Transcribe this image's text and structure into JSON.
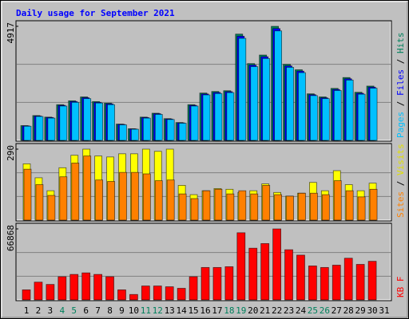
{
  "chart_data": [
    {
      "type": "bar",
      "title": "Daily usage for September 2021",
      "categories": [
        "1",
        "2",
        "3",
        "4",
        "5",
        "6",
        "7",
        "8",
        "9",
        "10",
        "11",
        "12",
        "13",
        "14",
        "15",
        "16",
        "17",
        "18",
        "19",
        "20",
        "21",
        "22",
        "23",
        "24",
        "25",
        "26",
        "27",
        "28",
        "29",
        "30",
        "31"
      ],
      "category_colors": [
        "#000000",
        "#000000",
        "#000000",
        "#00805c",
        "#00805c",
        "#000000",
        "#000000",
        "#000000",
        "#000000",
        "#000000",
        "#00805c",
        "#00805c",
        "#000000",
        "#000000",
        "#000000",
        "#000000",
        "#000000",
        "#00805c",
        "#00805c",
        "#000000",
        "#000000",
        "#000000",
        "#000000",
        "#000000",
        "#00805c",
        "#00805c",
        "#000000",
        "#000000",
        "#000000",
        "#000000",
        "#000000"
      ],
      "legend_separator": " / ",
      "ylim": [
        0,
        4917
      ],
      "yticks": [
        4917
      ],
      "series": [
        {
          "name": "Pages",
          "color": "#00c0ff",
          "values": [
            610,
            1030,
            960,
            1480,
            1640,
            1800,
            1610,
            1540,
            670,
            480,
            960,
            1120,
            900,
            740,
            1480,
            1960,
            2020,
            2060,
            4400,
            3180,
            3530,
            4720,
            3150,
            2920,
            1930,
            1800,
            2150,
            2600,
            1990,
            2250,
            null
          ]
        },
        {
          "name": "Files",
          "color": "#0000ff",
          "values": [
            625,
            1050,
            985,
            1510,
            1675,
            1840,
            1640,
            1575,
            690,
            490,
            985,
            1150,
            920,
            755,
            1510,
            2000,
            2065,
            2100,
            4490,
            3245,
            3605,
            4820,
            3210,
            2985,
            1970,
            1835,
            2195,
            2655,
            2030,
            2295,
            null
          ]
        },
        {
          "name": "Hits",
          "color": "#00805c",
          "values": [
            636,
            1070,
            1003,
            1539,
            1706,
            1873,
            1672,
            1605,
            702,
            502,
            1003,
            1171,
            937,
            769,
            1539,
            2040,
            2107,
            2141,
            4582,
            3311,
            3679,
            4917,
            3278,
            3044,
            2007,
            1873,
            2241,
            2709,
            2074,
            2341,
            null
          ]
        }
      ]
    },
    {
      "type": "bar",
      "ylim": [
        0,
        290
      ],
      "yticks": [
        290
      ],
      "series": [
        {
          "name": "Sites",
          "color": "#ff8000",
          "values": [
            208,
            145,
            101,
            177,
            233,
            262,
            164,
            158,
            195,
            195,
            189,
            161,
            164,
            107,
            88,
            120,
            126,
            107,
            120,
            107,
            142,
            104,
            98,
            110,
            110,
            104,
            161,
            120,
            95,
            126,
            null
          ]
        },
        {
          "name": "Visits",
          "color": "#ffff00",
          "values": [
            230,
            173,
            120,
            214,
            265,
            290,
            262,
            258,
            271,
            271,
            290,
            281,
            290,
            142,
            104,
            120,
            129,
            126,
            113,
            120,
            148,
            113,
            98,
            110,
            154,
            120,
            202,
            145,
            120,
            151,
            null
          ]
        }
      ]
    },
    {
      "type": "bar",
      "ylim": [
        0,
        66868
      ],
      "yticks": [
        66868
      ],
      "series": [
        {
          "name": "KB F",
          "color": "#ff0000",
          "values": [
            9449,
            16717,
            14537,
            21805,
            23985,
            25439,
            23985,
            21805,
            9449,
            5088,
            13083,
            13083,
            12356,
            10903,
            21805,
            30527,
            30527,
            31254,
            63234,
            48697,
            53058,
            66868,
            47244,
            42156,
            31981,
            30527,
            32707,
            39249,
            33434,
            36341,
            null
          ]
        }
      ]
    }
  ]
}
